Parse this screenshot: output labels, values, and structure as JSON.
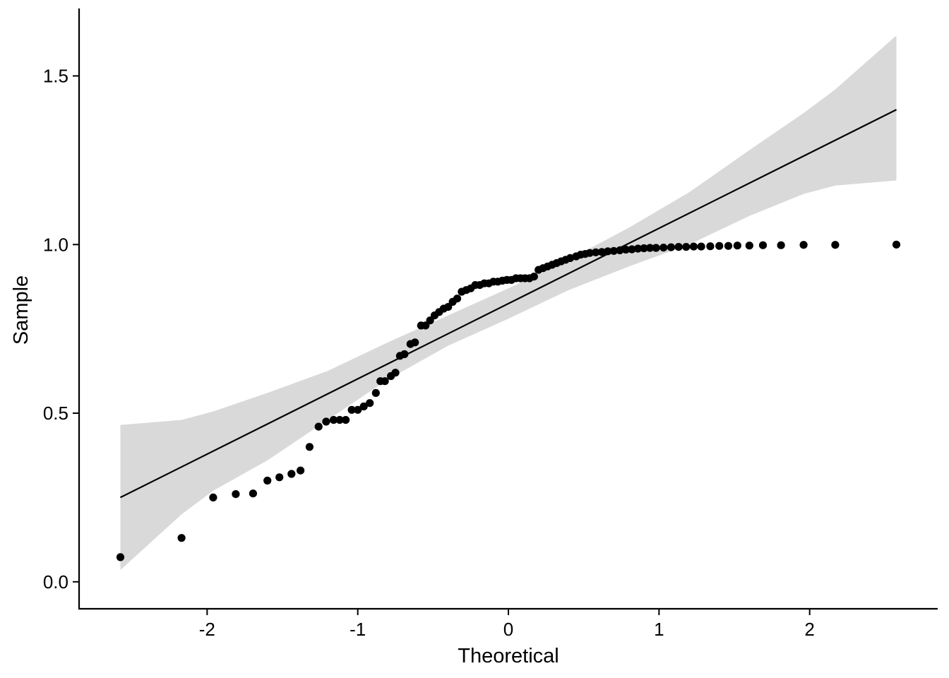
{
  "chart_data": {
    "type": "scatter",
    "subtype": "qq-plot",
    "title": "",
    "xlabel": "Theoretical",
    "ylabel": "Sample",
    "xlim": [
      -2.85,
      2.85
    ],
    "ylim": [
      -0.08,
      1.7
    ],
    "x_ticks": [
      -2,
      -1,
      0,
      1,
      2
    ],
    "x_tick_labels": [
      "-2",
      "-1",
      "0",
      "1",
      "2"
    ],
    "y_ticks": [
      0.0,
      0.5,
      1.0,
      1.5
    ],
    "y_tick_labels": [
      "0.0",
      "0.5",
      "1.0",
      "1.5"
    ],
    "grid": false,
    "legend": "none",
    "colors": {
      "points": "#000000",
      "line": "#000000",
      "band": "#d9d9d9"
    },
    "points": [
      [
        -2.576,
        0.073
      ],
      [
        -2.17,
        0.13
      ],
      [
        -1.96,
        0.25
      ],
      [
        -1.81,
        0.26
      ],
      [
        -1.695,
        0.262
      ],
      [
        -1.6,
        0.3
      ],
      [
        -1.52,
        0.31
      ],
      [
        -1.44,
        0.32
      ],
      [
        -1.38,
        0.33
      ],
      [
        -1.32,
        0.4
      ],
      [
        -1.26,
        0.46
      ],
      [
        -1.21,
        0.475
      ],
      [
        -1.16,
        0.48
      ],
      [
        -1.12,
        0.48
      ],
      [
        -1.08,
        0.48
      ],
      [
        -1.04,
        0.51
      ],
      [
        -1.0,
        0.51
      ],
      [
        -0.96,
        0.52
      ],
      [
        -0.92,
        0.53
      ],
      [
        -0.88,
        0.56
      ],
      [
        -0.85,
        0.595
      ],
      [
        -0.82,
        0.595
      ],
      [
        -0.78,
        0.61
      ],
      [
        -0.75,
        0.62
      ],
      [
        -0.72,
        0.67
      ],
      [
        -0.69,
        0.675
      ],
      [
        -0.65,
        0.705
      ],
      [
        -0.62,
        0.71
      ],
      [
        -0.58,
        0.76
      ],
      [
        -0.55,
        0.76
      ],
      [
        -0.52,
        0.775
      ],
      [
        -0.49,
        0.79
      ],
      [
        -0.46,
        0.8
      ],
      [
        -0.43,
        0.81
      ],
      [
        -0.4,
        0.815
      ],
      [
        -0.37,
        0.83
      ],
      [
        -0.34,
        0.84
      ],
      [
        -0.31,
        0.86
      ],
      [
        -0.28,
        0.865
      ],
      [
        -0.25,
        0.87
      ],
      [
        -0.22,
        0.88
      ],
      [
        -0.19,
        0.88
      ],
      [
        -0.16,
        0.885
      ],
      [
        -0.13,
        0.885
      ],
      [
        -0.1,
        0.89
      ],
      [
        -0.07,
        0.89
      ],
      [
        -0.04,
        0.893
      ],
      [
        -0.01,
        0.895
      ],
      [
        0.02,
        0.895
      ],
      [
        0.05,
        0.9
      ],
      [
        0.08,
        0.9
      ],
      [
        0.11,
        0.9
      ],
      [
        0.14,
        0.9
      ],
      [
        0.17,
        0.905
      ],
      [
        0.2,
        0.925
      ],
      [
        0.23,
        0.93
      ],
      [
        0.26,
        0.935
      ],
      [
        0.29,
        0.94
      ],
      [
        0.32,
        0.945
      ],
      [
        0.35,
        0.95
      ],
      [
        0.38,
        0.955
      ],
      [
        0.41,
        0.96
      ],
      [
        0.45,
        0.965
      ],
      [
        0.48,
        0.97
      ],
      [
        0.51,
        0.972
      ],
      [
        0.54,
        0.975
      ],
      [
        0.58,
        0.977
      ],
      [
        0.62,
        0.978
      ],
      [
        0.66,
        0.98
      ],
      [
        0.7,
        0.981
      ],
      [
        0.74,
        0.983
      ],
      [
        0.78,
        0.985
      ],
      [
        0.82,
        0.986
      ],
      [
        0.86,
        0.988
      ],
      [
        0.9,
        0.989
      ],
      [
        0.94,
        0.99
      ],
      [
        0.98,
        0.99
      ],
      [
        1.03,
        0.991
      ],
      [
        1.08,
        0.992
      ],
      [
        1.13,
        0.993
      ],
      [
        1.18,
        0.993
      ],
      [
        1.23,
        0.994
      ],
      [
        1.28,
        0.994
      ],
      [
        1.34,
        0.995
      ],
      [
        1.4,
        0.996
      ],
      [
        1.46,
        0.996
      ],
      [
        1.52,
        0.997
      ],
      [
        1.6,
        0.997
      ],
      [
        1.69,
        0.998
      ],
      [
        1.81,
        0.998
      ],
      [
        1.96,
        0.999
      ],
      [
        2.17,
        0.999
      ],
      [
        2.576,
        1.0
      ]
    ],
    "reference_line": {
      "x": [
        -2.576,
        2.576
      ],
      "y": [
        0.25,
        1.4
      ]
    },
    "confidence_band": {
      "x": [
        -2.576,
        -2.17,
        -1.96,
        -1.6,
        -1.2,
        -0.8,
        -0.4,
        0.0,
        0.4,
        0.8,
        1.2,
        1.6,
        1.96,
        2.17,
        2.576
      ],
      "upper": [
        0.465,
        0.48,
        0.505,
        0.56,
        0.625,
        0.71,
        0.79,
        0.87,
        0.955,
        1.05,
        1.155,
        1.28,
        1.39,
        1.46,
        1.62
      ],
      "lower": [
        0.035,
        0.2,
        0.27,
        0.36,
        0.48,
        0.6,
        0.7,
        0.78,
        0.865,
        0.935,
        1.0,
        1.085,
        1.15,
        1.175,
        1.19
      ]
    }
  }
}
